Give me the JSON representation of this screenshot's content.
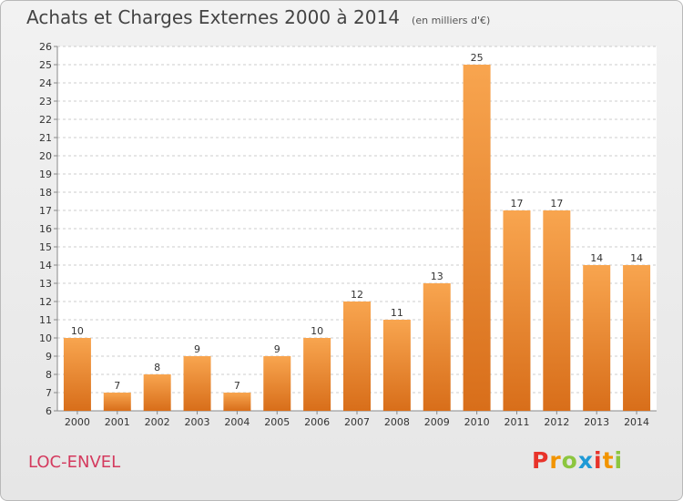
{
  "title": "Achats et Charges Externes 2000 à 2014",
  "subtitle": "(en milliers d'€)",
  "place": "LOC-ENVEL",
  "logo": {
    "letters": [
      "P",
      "r",
      "o",
      "x",
      "i",
      "t",
      "i"
    ],
    "colors": [
      "#e8332a",
      "#f29400",
      "#8cc63f",
      "#1f9ad6",
      "#e8332a",
      "#f29400",
      "#8cc63f"
    ]
  },
  "colors": {
    "bar_light": "#f8a54f",
    "bar_dark": "#d86e1a",
    "grid": "#cccccc"
  },
  "chart_data": {
    "type": "bar",
    "categories": [
      "2000",
      "2001",
      "2002",
      "2003",
      "2004",
      "2005",
      "2006",
      "2007",
      "2008",
      "2009",
      "2010",
      "2011",
      "2012",
      "2013",
      "2014"
    ],
    "values": [
      10,
      7,
      8,
      9,
      7,
      9,
      10,
      12,
      11,
      13,
      25,
      17,
      17,
      14,
      14
    ],
    "ylim": [
      6,
      26
    ],
    "yticks": [
      6,
      7,
      8,
      9,
      10,
      11,
      12,
      13,
      14,
      15,
      16,
      17,
      18,
      19,
      20,
      21,
      22,
      23,
      24,
      25,
      26
    ],
    "grid": "horizontal dashed"
  }
}
